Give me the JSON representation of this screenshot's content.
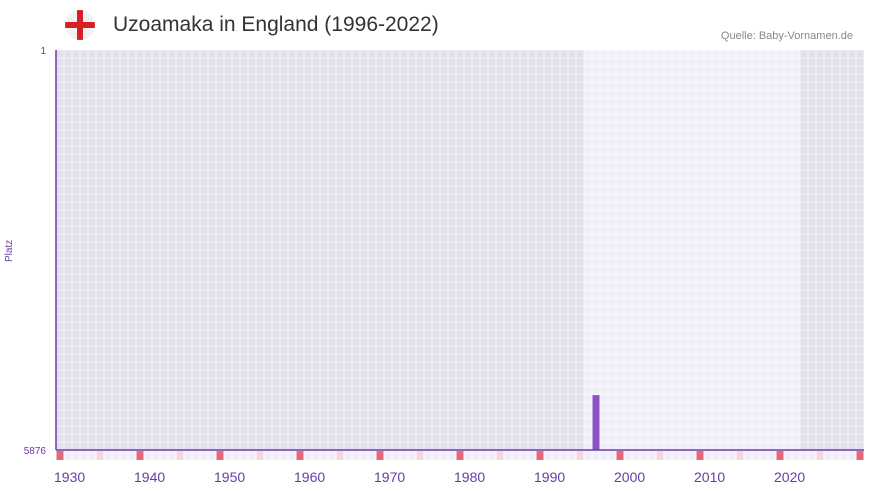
{
  "header": {
    "title": "Uzoamaka in England (1996-2022)",
    "source": "Quelle: Baby-Vornamen.de",
    "flag_icon": "england-flag-icon"
  },
  "chart_data": {
    "type": "bar",
    "title": "Uzoamaka in England (1996-2022)",
    "xlabel": "",
    "ylabel": "Platz",
    "x_range": [
      1930,
      2030
    ],
    "highlight_range": [
      1996,
      2022
    ],
    "y_ticks": [
      "1",
      "5876"
    ],
    "ylim": [
      5876,
      1
    ],
    "x_ticks": [
      "1930",
      "1940",
      "1950",
      "1960",
      "1970",
      "1980",
      "1990",
      "2000",
      "2010",
      "2020"
    ],
    "points": [
      {
        "year": 1997,
        "rank": 5070
      }
    ],
    "colors": {
      "bar": "#8c50c8",
      "axis": "#6a3aa8",
      "bg": "#e4dfec",
      "highlight_bg": "#f1eef9",
      "decade_mark": "#e06a7a",
      "half_mark": "#f5d5dc"
    }
  }
}
